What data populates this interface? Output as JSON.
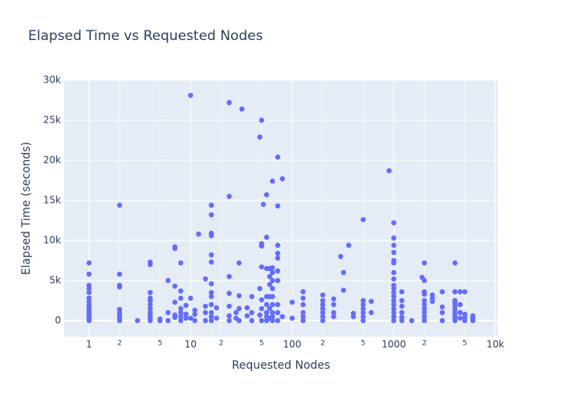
{
  "chart_data": {
    "type": "scatter",
    "title": "Elapsed Time vs Requested Nodes",
    "x_label": "Requested Nodes",
    "y_label": "Elapsed Time (seconds)",
    "x_scale": "log",
    "grid": true,
    "xlim": [
      0.57,
      10560
    ],
    "ylim": [
      -2000,
      30000
    ],
    "xticks": [
      1,
      2,
      5,
      10,
      {
        "value": 20,
        "label": "2"
      },
      {
        "value": 50,
        "label": "5"
      },
      100,
      {
        "value": 200,
        "label": "2"
      },
      {
        "value": 500,
        "label": "5"
      },
      1000,
      {
        "value": 2000,
        "label": "2"
      },
      {
        "value": 5000,
        "label": "5"
      },
      {
        "value": 10000,
        "label": "10k"
      }
    ],
    "yticks": [
      0,
      {
        "value": 5000,
        "label": "5k"
      },
      {
        "value": 10000,
        "label": "10k"
      },
      {
        "value": 15000,
        "label": "15k"
      },
      {
        "value": 20000,
        "label": "20k"
      },
      {
        "value": 25000,
        "label": "25k"
      },
      {
        "value": 30000,
        "label": "30k"
      }
    ],
    "series": [
      {
        "color": "#636efa",
        "x": [
          1,
          1,
          1,
          1,
          1,
          1,
          1,
          1,
          1,
          1,
          1,
          1,
          1,
          1,
          1,
          2,
          2,
          2,
          2,
          2,
          2,
          2,
          2,
          2,
          3,
          4,
          4,
          4,
          4,
          4,
          4,
          4,
          4,
          4,
          4,
          4,
          5,
          5,
          6,
          6,
          6,
          7,
          7,
          7,
          7,
          7,
          7,
          8,
          8,
          8,
          8,
          8,
          8,
          8,
          9,
          9,
          9,
          10,
          10,
          10,
          11,
          11,
          11,
          12,
          14,
          14,
          14,
          14,
          16,
          16,
          16,
          16,
          16,
          16,
          16,
          16,
          16,
          16,
          16,
          16,
          16,
          18,
          18,
          24,
          24,
          24,
          24,
          24,
          24,
          24,
          28,
          28,
          30,
          30,
          30,
          30,
          32,
          36,
          36,
          40,
          40,
          40,
          48,
          48,
          48,
          50,
          50,
          50,
          50,
          50,
          50,
          50,
          52,
          56,
          56,
          56,
          56,
          56,
          56,
          56,
          56,
          60,
          60,
          60,
          60,
          60,
          60,
          64,
          64,
          64,
          64,
          64,
          64,
          64,
          64,
          64,
          64,
          72,
          72,
          72,
          72,
          72,
          72,
          72,
          72,
          72,
          72,
          80,
          80,
          100,
          100,
          128,
          128,
          128,
          128,
          128,
          128,
          200,
          200,
          200,
          200,
          200,
          200,
          200,
          256,
          256,
          256,
          256,
          300,
          320,
          320,
          360,
          400,
          400,
          500,
          500,
          500,
          500,
          500,
          500,
          500,
          600,
          600,
          900,
          1000,
          1000,
          1000,
          1000,
          1000,
          1000,
          1000,
          1000,
          1000,
          1000,
          1000,
          1000,
          1000,
          1000,
          1000,
          1000,
          1000,
          1000,
          1200,
          1200,
          1200,
          1200,
          1200,
          1200,
          1500,
          1900,
          2000,
          2000,
          2000,
          2000,
          2000,
          2000,
          2000,
          2000,
          2000,
          2000,
          2400,
          2400,
          2400,
          3000,
          3000,
          3000,
          3000,
          4000,
          4000,
          4000,
          4000,
          4000,
          4000,
          4000,
          4000,
          4000,
          4000,
          4500,
          4500,
          4500,
          4500,
          5000,
          5000,
          5000,
          5000,
          6000,
          6000,
          6000
        ],
        "values": [
          0,
          200,
          500,
          800,
          1000,
          1300,
          1600,
          2000,
          2400,
          2800,
          3500,
          4000,
          4400,
          5800,
          7200,
          0,
          300,
          600,
          1000,
          1400,
          4200,
          4400,
          5800,
          14400,
          0,
          0,
          300,
          700,
          1000,
          1500,
          2000,
          2500,
          2800,
          3500,
          7000,
          7300,
          0,
          200,
          0,
          1000,
          5000,
          400,
          700,
          2300,
          4300,
          9000,
          9200,
          0,
          500,
          1000,
          1500,
          2800,
          3700,
          7200,
          300,
          800,
          1900,
          300,
          2800,
          28100,
          0,
          800,
          1300,
          10800,
          0,
          1000,
          1800,
          5200,
          0,
          500,
          1000,
          2000,
          3000,
          3500,
          4600,
          7300,
          8200,
          10600,
          10900,
          13200,
          14400,
          300,
          1600,
          0,
          600,
          1800,
          3400,
          5500,
          15500,
          27200,
          300,
          1000,
          0,
          1500,
          3100,
          7200,
          26400,
          600,
          1600,
          0,
          1000,
          3000,
          700,
          4000,
          22900,
          0,
          1500,
          2600,
          6700,
          9300,
          9600,
          25000,
          14500,
          0,
          500,
          1000,
          2000,
          3000,
          6500,
          10400,
          15700,
          300,
          1500,
          3000,
          4500,
          5500,
          6500,
          0,
          500,
          1000,
          2000,
          3000,
          4000,
          5000,
          6000,
          6600,
          17400,
          0,
          1000,
          2000,
          5000,
          6200,
          7800,
          8400,
          9400,
          14300,
          20400,
          500,
          17700,
          300,
          2300,
          0,
          500,
          1000,
          2000,
          2800,
          3600,
          0,
          500,
          1000,
          1500,
          2000,
          2500,
          3200,
          500,
          1000,
          2000,
          2700,
          8000,
          3800,
          6000,
          9400,
          500,
          900,
          0,
          500,
          1000,
          1500,
          2000,
          2500,
          12600,
          1000,
          2400,
          18700,
          0,
          500,
          1000,
          1500,
          2000,
          2500,
          3000,
          3500,
          4000,
          4400,
          5200,
          6000,
          7200,
          7500,
          8500,
          9400,
          10300,
          12200,
          0,
          400,
          1000,
          1800,
          2500,
          3600,
          0,
          5400,
          0,
          500,
          1000,
          1500,
          2000,
          2500,
          3300,
          3600,
          5000,
          7200,
          2400,
          2800,
          3200,
          0,
          1000,
          1700,
          3600,
          0,
          300,
          600,
          1000,
          1400,
          1800,
          2200,
          2500,
          3600,
          7200,
          300,
          1000,
          2000,
          3600,
          0,
          400,
          800,
          3600,
          0,
          300,
          600
        ]
      }
    ]
  }
}
